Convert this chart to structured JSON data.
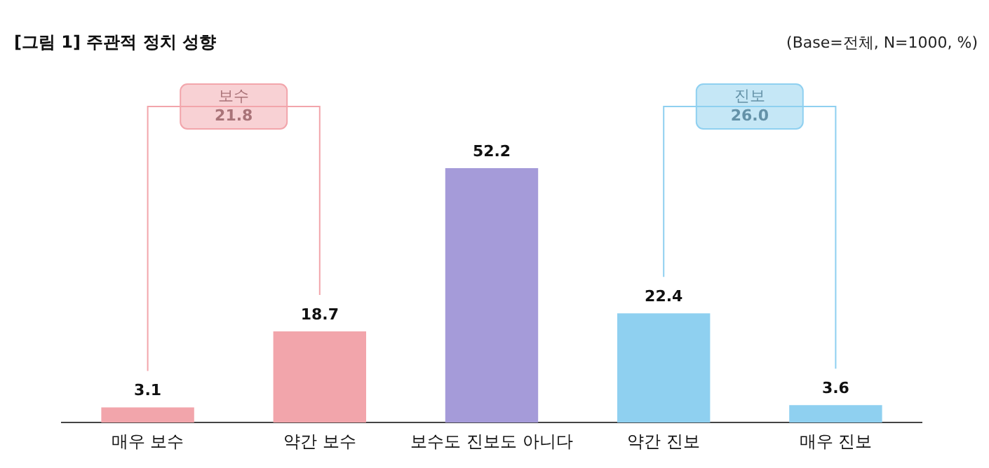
{
  "chart_data": {
    "type": "bar",
    "title": "[그림 1] 주관적 정치 성향",
    "subtitle": "(Base=전체, N=1000, %)",
    "categories": [
      "매우 보수",
      "약간 보수",
      "보수도 진보도 아니다",
      "약간 진보",
      "매우 진보"
    ],
    "values": [
      3.1,
      18.7,
      52.2,
      22.4,
      3.6
    ],
    "colors": [
      "#f2a5ab",
      "#f2a5ab",
      "#a59bd9",
      "#8fd0f0",
      "#8fd0f0"
    ],
    "annotations": [
      "보수\n21.8",
      "진보\n26.0"
    ],
    "data_labels": true,
    "grid": false,
    "legend": false
  }
}
